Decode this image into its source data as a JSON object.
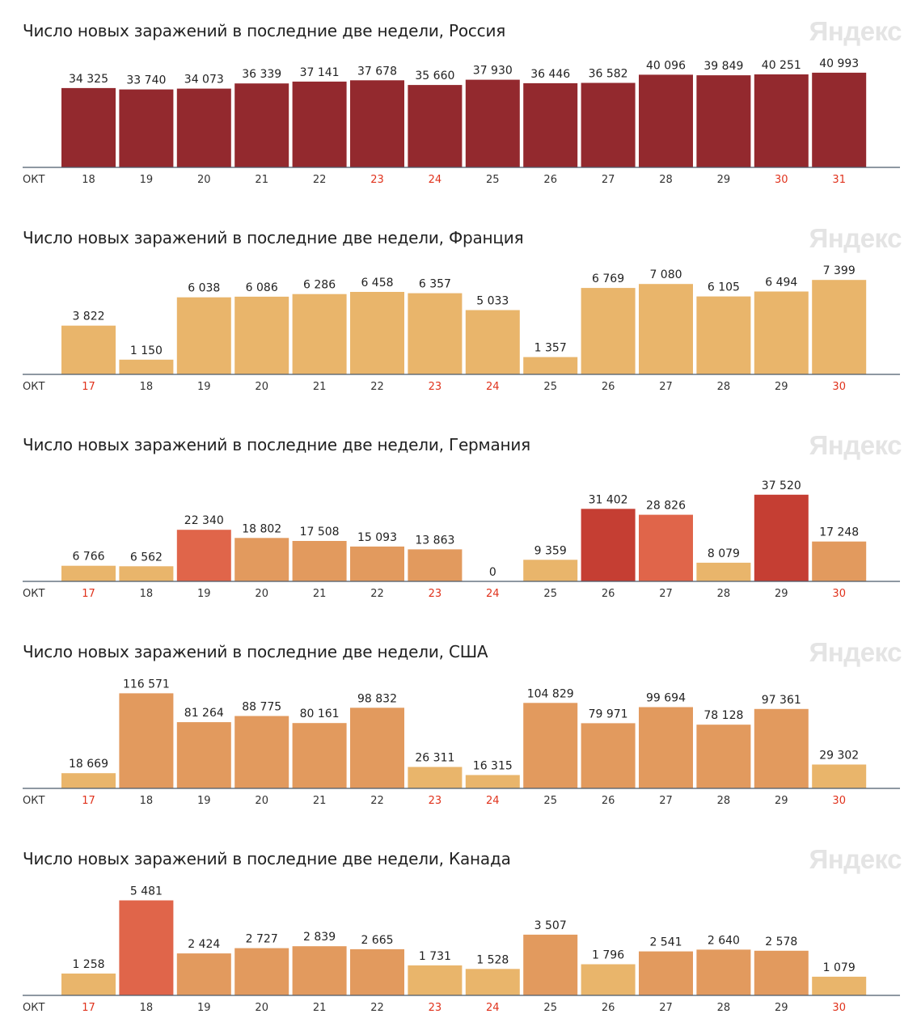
{
  "watermark": "Яндекс",
  "axis_month": "ОКТ",
  "colors": {
    "weekday": "#333333",
    "weekend": "#e0321c",
    "axis": "#4b5a6b",
    "value_label": "#222222"
  },
  "chart_data": [
    {
      "type": "bar",
      "title": "Число новых заражений в последние две недели, Россия",
      "categories": [
        "18",
        "19",
        "20",
        "21",
        "22",
        "23",
        "24",
        "25",
        "26",
        "27",
        "28",
        "29",
        "30",
        "31"
      ],
      "values": [
        34325,
        33740,
        34073,
        36339,
        37141,
        37678,
        35660,
        37930,
        36446,
        36582,
        40096,
        39849,
        40251,
        40993
      ],
      "labels": [
        "34 325",
        "33 740",
        "34 073",
        "36 339",
        "37 141",
        "37 678",
        "35 660",
        "37 930",
        "36 446",
        "36 582",
        "40 096",
        "39 849",
        "40 251",
        "40 993"
      ],
      "weekend": [
        false,
        false,
        false,
        false,
        false,
        true,
        true,
        false,
        false,
        false,
        false,
        false,
        true,
        true
      ],
      "bar_colors": [
        "#93292e",
        "#93292e",
        "#93292e",
        "#93292e",
        "#93292e",
        "#93292e",
        "#93292e",
        "#93292e",
        "#93292e",
        "#93292e",
        "#93292e",
        "#93292e",
        "#93292e",
        "#93292e"
      ],
      "ylim": [
        0,
        42000
      ]
    },
    {
      "type": "bar",
      "title": "Число новых заражений в последние две недели, Франция",
      "categories": [
        "17",
        "18",
        "19",
        "20",
        "21",
        "22",
        "23",
        "24",
        "25",
        "26",
        "27",
        "28",
        "29",
        "30"
      ],
      "values": [
        3822,
        1150,
        6038,
        6086,
        6286,
        6458,
        6357,
        5033,
        1357,
        6769,
        7080,
        6105,
        6494,
        7399
      ],
      "labels": [
        "3 822",
        "1 150",
        "6 038",
        "6 086",
        "6 286",
        "6 458",
        "6 357",
        "5 033",
        "1 357",
        "6 769",
        "7 080",
        "6 105",
        "6 494",
        "7 399"
      ],
      "weekend": [
        true,
        false,
        false,
        false,
        false,
        false,
        true,
        true,
        false,
        false,
        false,
        false,
        false,
        true
      ],
      "bar_colors": [
        "#e9b56b",
        "#e9b56b",
        "#e9b56b",
        "#e9b56b",
        "#e9b56b",
        "#e9b56b",
        "#e9b56b",
        "#e9b56b",
        "#e9b56b",
        "#e9b56b",
        "#e9b56b",
        "#e9b56b",
        "#e9b56b",
        "#e9b56b"
      ],
      "ylim": [
        0,
        7600
      ]
    },
    {
      "type": "bar",
      "title": "Число новых заражений в последние две недели, Германия",
      "categories": [
        "17",
        "18",
        "19",
        "20",
        "21",
        "22",
        "23",
        "24",
        "25",
        "26",
        "27",
        "28",
        "29",
        "30"
      ],
      "values": [
        6766,
        6562,
        22340,
        18802,
        17508,
        15093,
        13863,
        0,
        9359,
        31402,
        28826,
        8079,
        37520,
        17248
      ],
      "labels": [
        "6 766",
        "6 562",
        "22 340",
        "18 802",
        "17 508",
        "15 093",
        "13 863",
        "0",
        "9 359",
        "31 402",
        "28 826",
        "8 079",
        "37 520",
        "17 248"
      ],
      "weekend": [
        true,
        false,
        false,
        false,
        false,
        false,
        true,
        true,
        false,
        false,
        false,
        false,
        false,
        true
      ],
      "bar_colors": [
        "#e9b56b",
        "#e9b56b",
        "#e0654a",
        "#e29a5e",
        "#e29a5e",
        "#e29a5e",
        "#e29a5e",
        "#e9b56b",
        "#e9b56b",
        "#c53e33",
        "#e0654a",
        "#e9b56b",
        "#c53e33",
        "#e29a5e"
      ],
      "ylim": [
        0,
        42000
      ]
    },
    {
      "type": "bar",
      "title": "Число новых заражений в последние две недели, США",
      "categories": [
        "17",
        "18",
        "19",
        "20",
        "21",
        "22",
        "23",
        "24",
        "25",
        "26",
        "27",
        "28",
        "29",
        "30"
      ],
      "values": [
        18669,
        116571,
        81264,
        88775,
        80161,
        98832,
        26311,
        16315,
        104829,
        79971,
        99694,
        78128,
        97361,
        29302
      ],
      "labels": [
        "18 669",
        "116 571",
        "81 264",
        "88 775",
        "80 161",
        "98 832",
        "26 311",
        "16 315",
        "104 829",
        "79 971",
        "99 694",
        "78 128",
        "97 361",
        "29 302"
      ],
      "weekend": [
        true,
        false,
        false,
        false,
        false,
        false,
        true,
        true,
        false,
        false,
        false,
        false,
        false,
        true
      ],
      "bar_colors": [
        "#e9b56b",
        "#e29a5e",
        "#e29a5e",
        "#e29a5e",
        "#e29a5e",
        "#e29a5e",
        "#e9b56b",
        "#e9b56b",
        "#e29a5e",
        "#e29a5e",
        "#e29a5e",
        "#e29a5e",
        "#e29a5e",
        "#e9b56b"
      ],
      "ylim": [
        0,
        119000
      ]
    },
    {
      "type": "bar",
      "title": "Число новых заражений в последние две недели, Канада",
      "categories": [
        "17",
        "18",
        "19",
        "20",
        "21",
        "22",
        "23",
        "24",
        "25",
        "26",
        "27",
        "28",
        "29",
        "30"
      ],
      "values": [
        1258,
        5481,
        2424,
        2727,
        2839,
        2665,
        1731,
        1528,
        3507,
        1796,
        2541,
        2640,
        2578,
        1079
      ],
      "labels": [
        "1 258",
        "5 481",
        "2 424",
        "2 727",
        "2 839",
        "2 665",
        "1 731",
        "1 528",
        "3 507",
        "1 796",
        "2 541",
        "2 640",
        "2 578",
        "1 079"
      ],
      "weekend": [
        true,
        false,
        false,
        false,
        false,
        false,
        true,
        true,
        false,
        false,
        false,
        false,
        false,
        true
      ],
      "bar_colors": [
        "#e9b56b",
        "#e0654a",
        "#e29a5e",
        "#e29a5e",
        "#e29a5e",
        "#e29a5e",
        "#e9b56b",
        "#e9b56b",
        "#e29a5e",
        "#e9b56b",
        "#e29a5e",
        "#e29a5e",
        "#e29a5e",
        "#e9b56b"
      ],
      "ylim": [
        0,
        5600
      ]
    }
  ]
}
